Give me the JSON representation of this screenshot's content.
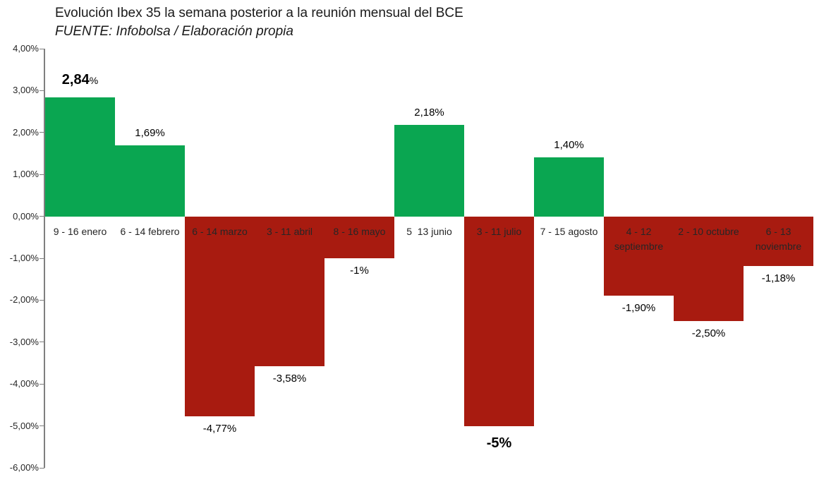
{
  "chart_data": {
    "type": "bar",
    "title": "Evolución Ibex 35 la semana posterior a la reunión mensual del BCE",
    "subtitle": "FUENTE: Infobolsa / Elaboración propia",
    "categories": [
      "9 - 16 enero",
      "6 - 14 febrero",
      "6 - 14 marzo",
      "3 - 11 abril",
      "8 - 16 mayo",
      "5  13 junio",
      "3 - 11 julio",
      "7 - 15 agosto",
      "4 - 12\nseptiembre",
      "2 - 10 octubre",
      "6 - 13\nnoviembre"
    ],
    "values": [
      2.84,
      1.69,
      -4.77,
      -3.58,
      -1.0,
      2.18,
      -5.0,
      1.4,
      -1.9,
      -2.5,
      -1.18
    ],
    "value_labels": [
      "2,84%",
      "1,69%",
      "-4,77%",
      "-3,58%",
      "-1%",
      "2,18%",
      "-5%",
      "1,40%",
      "-1,90%",
      "-2,50%",
      "-1,18%"
    ],
    "label_styles": [
      "bold-mixed",
      "normal",
      "normal",
      "normal",
      "normal",
      "normal",
      "bold",
      "normal",
      "normal",
      "normal",
      "normal"
    ],
    "ytick_labels": [
      "4,00%",
      "3,00%",
      "2,00%",
      "1,00%",
      "0,00%",
      "-1,00%",
      "-2,00%",
      "-3,00%",
      "-4,00%",
      "-5,00%",
      "-6,00%"
    ],
    "ylim": [
      -6,
      4
    ],
    "ytick_step": 1,
    "gridlines": false,
    "legend": false,
    "bar_gap": 0,
    "colors": {
      "positive": "#0aa651",
      "negative": "#a81b10",
      "axis": "#7f7f7f",
      "tick_label": "#262626",
      "category_label": "#262626",
      "value_label": "#000000",
      "background": "#ffffff"
    }
  }
}
